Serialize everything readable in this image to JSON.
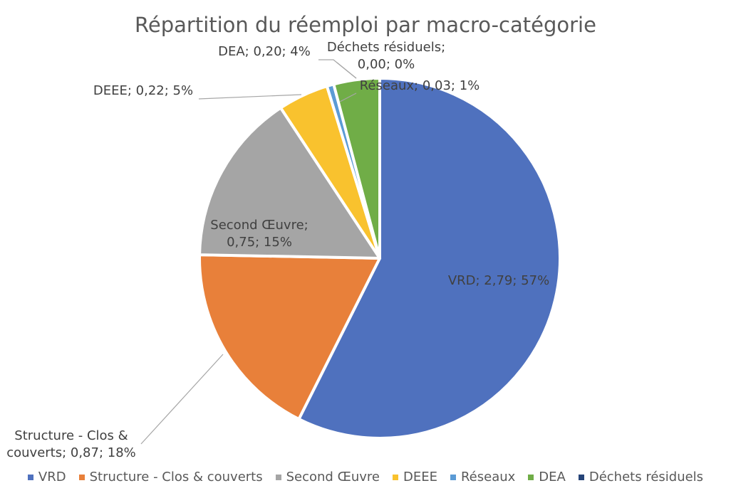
{
  "chart_data": {
    "type": "pie",
    "title": "Répartition du réemploi par macro-catégorie",
    "legend_position": "bottom",
    "slices": [
      {
        "name": "VRD",
        "value": 2.79,
        "percent": 57,
        "color": "#4F71BE",
        "label_lines": [
          "VRD; 2,79; 57%"
        ]
      },
      {
        "name": "Structure - Clos & couverts",
        "value": 0.87,
        "percent": 18,
        "color": "#E8803A",
        "label_lines": [
          "Structure - Clos &",
          "couverts; 0,87; 18%"
        ]
      },
      {
        "name": "Second Œuvre",
        "value": 0.75,
        "percent": 15,
        "color": "#A5A5A5",
        "label_lines": [
          "Second Œuvre;",
          "0,75; 15%"
        ]
      },
      {
        "name": "DEEE",
        "value": 0.22,
        "percent": 5,
        "color": "#F9C22E",
        "label_lines": [
          "DEEE; 0,22; 5%"
        ]
      },
      {
        "name": "Réseaux",
        "value": 0.03,
        "percent": 1,
        "color": "#5B9BD5",
        "label_lines": [
          "Réseaux; 0,03; 1%"
        ]
      },
      {
        "name": "DEA",
        "value": 0.2,
        "percent": 4,
        "color": "#70AD47",
        "label_lines": [
          "DEA; 0,20; 4%"
        ]
      },
      {
        "name": "Déchets résiduels",
        "value": 0.0,
        "percent": 0,
        "color": "#264478",
        "label_lines": [
          "Déchets résiduels;",
          "0,00; 0%"
        ]
      }
    ]
  }
}
